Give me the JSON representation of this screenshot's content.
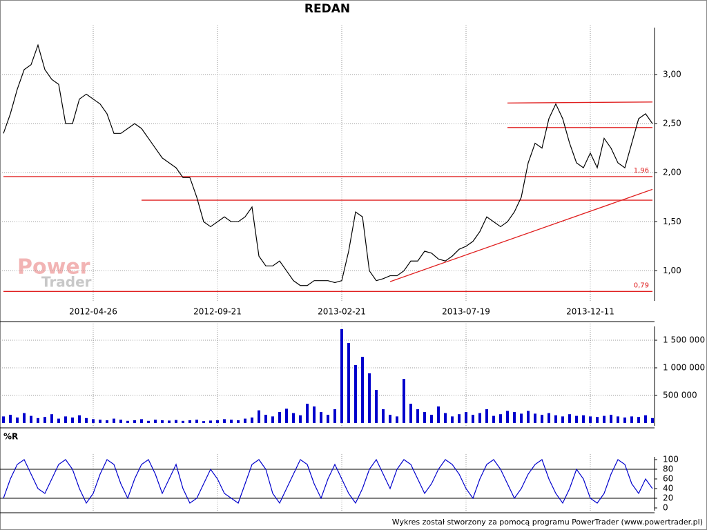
{
  "chart_data": [
    {
      "type": "line",
      "title": "REDAN",
      "categories": [
        null,
        null,
        null,
        null,
        null,
        null,
        null,
        null,
        null,
        null,
        null,
        null,
        null,
        "2012-04-26",
        null,
        null,
        null,
        null,
        null,
        null,
        null,
        null,
        null,
        null,
        null,
        null,
        null,
        null,
        null,
        null,
        null,
        "2012-09-21",
        null,
        null,
        null,
        null,
        null,
        null,
        null,
        null,
        null,
        null,
        null,
        null,
        null,
        null,
        null,
        null,
        null,
        "2013-02-21",
        null,
        null,
        null,
        null,
        null,
        null,
        null,
        null,
        null,
        null,
        null,
        null,
        null,
        null,
        null,
        null,
        null,
        "2013-07-19",
        null,
        null,
        null,
        null,
        null,
        null,
        null,
        null,
        null,
        null,
        null,
        null,
        null,
        null,
        null,
        null,
        null,
        "2013-12-11",
        null,
        null,
        null,
        null,
        null,
        null,
        null,
        null,
        null
      ],
      "values": [
        2.4,
        2.6,
        2.85,
        3.05,
        3.1,
        3.3,
        3.05,
        2.95,
        2.9,
        2.5,
        2.5,
        2.75,
        2.8,
        2.75,
        2.7,
        2.6,
        2.4,
        2.4,
        2.45,
        2.5,
        2.45,
        2.35,
        2.25,
        2.15,
        2.1,
        2.05,
        1.95,
        1.95,
        1.75,
        1.5,
        1.45,
        1.5,
        1.55,
        1.5,
        1.5,
        1.55,
        1.65,
        1.15,
        1.05,
        1.05,
        1.1,
        1.0,
        0.9,
        0.85,
        0.85,
        0.9,
        0.9,
        0.9,
        0.88,
        0.9,
        1.2,
        1.6,
        1.55,
        1.0,
        0.9,
        0.92,
        0.95,
        0.95,
        1.0,
        1.1,
        1.1,
        1.2,
        1.18,
        1.12,
        1.1,
        1.15,
        1.22,
        1.25,
        1.3,
        1.4,
        1.55,
        1.5,
        1.45,
        1.5,
        1.6,
        1.75,
        2.1,
        2.3,
        2.25,
        2.55,
        2.7,
        2.55,
        2.3,
        2.1,
        2.05,
        2.2,
        2.05,
        2.35,
        2.25,
        2.1,
        2.05,
        2.3,
        2.55,
        2.6,
        2.5
      ],
      "color": "#000000",
      "ylim": [
        0.75,
        3.45
      ],
      "yticks": [
        {
          "value": 1,
          "label": "1,00"
        },
        {
          "value": 1.5,
          "label": "1,50"
        },
        {
          "value": 2,
          "label": "2,00"
        },
        {
          "value": 2.5,
          "label": "2,50"
        },
        {
          "value": 3,
          "label": "3,00"
        }
      ],
      "grid": true,
      "lines": [
        {
          "from": 0,
          "to": 94,
          "values": [
            1.96,
            1.96
          ],
          "label": "1,96"
        },
        {
          "from": 0,
          "to": 94,
          "values": [
            0.79,
            0.79
          ],
          "label": "0,79"
        },
        {
          "from": 20,
          "to": 94,
          "values": [
            1.72,
            1.72
          ]
        },
        {
          "from": 73,
          "to": 94,
          "values": [
            2.46,
            2.46
          ]
        },
        {
          "from": 73,
          "to": 94,
          "values": [
            2.71,
            2.72
          ]
        },
        {
          "from": 56,
          "to": 94,
          "values": [
            0.89,
            1.83
          ]
        }
      ],
      "line_color": "#e02020"
    },
    {
      "type": "bar",
      "values": [
        120000,
        150000,
        100000,
        180000,
        130000,
        90000,
        110000,
        160000,
        80000,
        120000,
        100000,
        140000,
        90000,
        70000,
        60000,
        50000,
        80000,
        60000,
        40000,
        50000,
        70000,
        40000,
        60000,
        50000,
        45000,
        55000,
        40000,
        50000,
        60000,
        35000,
        45000,
        50000,
        70000,
        60000,
        50000,
        80000,
        100000,
        230000,
        150000,
        120000,
        200000,
        260000,
        180000,
        140000,
        350000,
        300000,
        200000,
        150000,
        250000,
        1700000,
        1450000,
        1050000,
        1200000,
        900000,
        600000,
        250000,
        150000,
        120000,
        800000,
        350000,
        250000,
        200000,
        150000,
        300000,
        180000,
        120000,
        160000,
        200000,
        150000,
        180000,
        250000,
        130000,
        160000,
        220000,
        200000,
        170000,
        220000,
        170000,
        150000,
        180000,
        140000,
        120000,
        160000,
        130000,
        140000,
        120000,
        110000,
        130000,
        150000,
        120000,
        100000,
        120000,
        110000,
        140000,
        90000
      ],
      "color": "#0000cc",
      "ylim": [
        0,
        1700000
      ],
      "yticks": [
        {
          "value": 500000,
          "label": "500 000"
        },
        {
          "value": 1000000,
          "label": "1 000 000"
        },
        {
          "value": 1500000,
          "label": "1 500 000"
        }
      ],
      "grid": true
    },
    {
      "type": "line",
      "title": "%R",
      "values": [
        20,
        60,
        90,
        100,
        70,
        40,
        30,
        60,
        90,
        100,
        80,
        40,
        10,
        30,
        70,
        100,
        90,
        50,
        20,
        60,
        90,
        100,
        70,
        30,
        60,
        90,
        40,
        10,
        20,
        50,
        80,
        60,
        30,
        20,
        10,
        50,
        90,
        100,
        80,
        30,
        10,
        40,
        70,
        100,
        90,
        50,
        20,
        60,
        90,
        60,
        30,
        10,
        40,
        80,
        100,
        70,
        40,
        80,
        100,
        90,
        60,
        30,
        50,
        80,
        100,
        90,
        70,
        40,
        20,
        60,
        90,
        100,
        80,
        50,
        20,
        40,
        70,
        90,
        100,
        60,
        30,
        10,
        40,
        80,
        60,
        20,
        10,
        30,
        70,
        100,
        90,
        50,
        30,
        60,
        40
      ],
      "color": "#0000cc",
      "ylim": [
        0,
        100
      ],
      "yticks": [
        0,
        20,
        40,
        60,
        80,
        100
      ],
      "levels": [
        20,
        80
      ],
      "grid": false
    }
  ],
  "watermark": [
    "Power",
    "Trader"
  ],
  "footer": "Wykres został stworzony za pomocą programu PowerTrader (www.powertrader.pl)"
}
